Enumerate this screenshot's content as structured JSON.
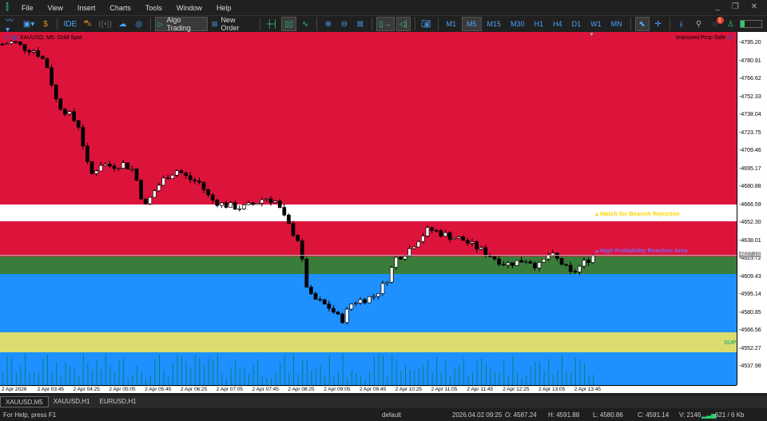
{
  "menu": {
    "items": [
      "File",
      "View",
      "Insert",
      "Charts",
      "Tools",
      "Window",
      "Help"
    ]
  },
  "toolbar": {
    "algo_trading": "Algo Trading",
    "new_order": "New Order",
    "ide": "IDE",
    "timeframes": [
      "M1",
      "M5",
      "M15",
      "M30",
      "H1",
      "H4",
      "D1",
      "W1",
      "MN"
    ],
    "selected_timeframe": "M5",
    "notification_count": "1"
  },
  "chart": {
    "title": "XAUUSD, M5:  Gold Spot",
    "expert": "Improved Prop Safe",
    "current_price": "4627.15",
    "price_ticks": [
      "4795.20",
      "4780.91",
      "4766.62",
      "4752.33",
      "4738.04",
      "4723.75",
      "4709.46",
      "4695.17",
      "4680.88",
      "4666.59",
      "4652.30",
      "4638.01",
      "4623.72",
      "4609.43",
      "4595.14",
      "4580.85",
      "4566.56",
      "4552.27",
      "4537.98"
    ],
    "time_ticks": [
      "2 Apr 2026",
      "2 Apr 03:45",
      "2 Apr 04:25",
      "2 Apr 05:05",
      "2 Apr 05:45",
      "2 Apr 06:25",
      "2 Apr 07:05",
      "2 Apr 07:45",
      "2 Apr 08:25",
      "2 Apr 09:05",
      "2 Apr 09:45",
      "2 Apr 10:25",
      "2 Apr 11:05",
      "2 Apr 11:45",
      "2 Apr 12:25",
      "2 Apr 13:05",
      "2 Apr 13:45"
    ],
    "labels": {
      "bearish": "Watch for Bearish Rejection",
      "reaction": "High Probability Reaction Area",
      "support": "SUP"
    },
    "zones": [
      {
        "name": "resistance-zone-upper",
        "from": 4800,
        "to": 4667.5,
        "color": "#dc143c"
      },
      {
        "name": "bearish-rejection-zone",
        "from": 4667.5,
        "to": 4654.5,
        "color": "#ffffff"
      },
      {
        "name": "resistance-zone-lower",
        "from": 4654.5,
        "to": 4626.5,
        "color": "#dc143c"
      },
      {
        "name": "reaction-zone",
        "from": 4626.5,
        "to": 4612,
        "color": "#3a7d3a"
      },
      {
        "name": "demand-zone",
        "from": 4612,
        "to": 4566,
        "color": "#1e90ff"
      },
      {
        "name": "support-zone",
        "from": 4566,
        "to": 4550,
        "color": "#dcdc6e"
      },
      {
        "name": "lower-zone",
        "from": 4550,
        "to": 4500,
        "color": "#1e90ff"
      }
    ],
    "price_path": [
      4795,
      4797,
      4792,
      4790,
      4780,
      4748,
      4740,
      4730,
      4690,
      4700,
      4698,
      4700,
      4695,
      4665,
      4680,
      4690,
      4695,
      4688,
      4685,
      4672,
      4668,
      4666,
      4665,
      4668,
      4673,
      4670,
      4653,
      4640,
      4595,
      4590,
      4585,
      4575,
      4590,
      4592,
      4595,
      4605,
      4625,
      4630,
      4640,
      4648,
      4645,
      4642,
      4640,
      4635,
      4630,
      4625,
      4620,
      4622,
      4624,
      4618,
      4628,
      4622,
      4612,
      4620,
      4627
    ]
  },
  "tabs": [
    "XAUUSD,M5",
    "XAUUSD,H1",
    "EURUSD,H1"
  ],
  "status": {
    "help": "For Help, press F1",
    "profile": "default",
    "datetime": "2026.04.02 09:25",
    "open": "O: 4587.24",
    "high": "H: 4591.88",
    "low": "L: 4580.86",
    "close": "C: 4591.14",
    "volume": "V: 2146",
    "traffic": "621 / 6 Kb"
  }
}
